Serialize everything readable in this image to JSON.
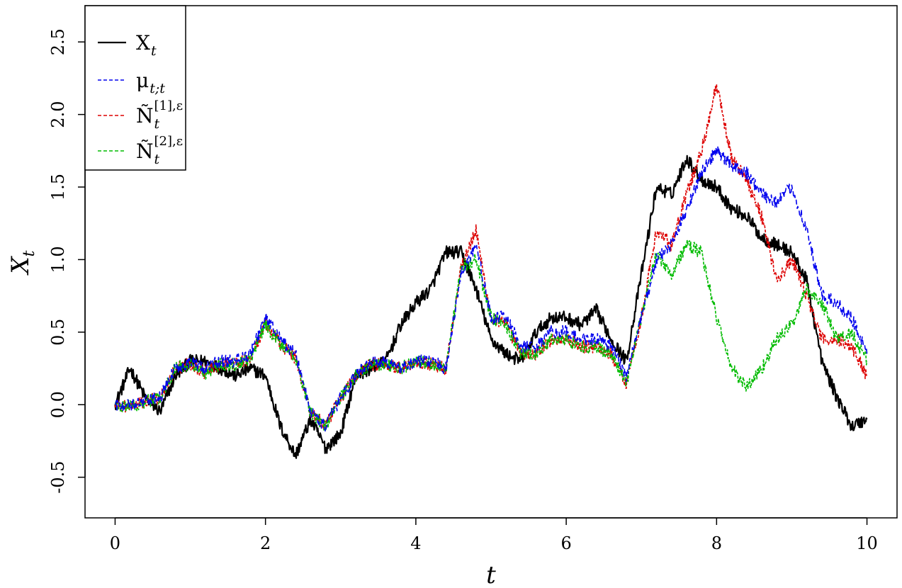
{
  "chart_data": {
    "type": "line",
    "title": "",
    "xlabel": "t",
    "ylabel": "X_t",
    "xlim": [
      -0.4,
      10.4
    ],
    "ylim": [
      -0.78,
      2.75
    ],
    "x_ticks": [
      0,
      2,
      4,
      6,
      8,
      10
    ],
    "x_tick_labels": [
      "0",
      "2",
      "4",
      "6",
      "8",
      "10"
    ],
    "y_ticks": [
      -0.5,
      0.0,
      0.5,
      1.0,
      1.5,
      2.0,
      2.5
    ],
    "y_tick_labels": [
      "-0.5",
      "0.0",
      "0.5",
      "1.0",
      "1.5",
      "2.0",
      "2.5"
    ],
    "grid": false,
    "legend_position": "top-left",
    "series": [
      {
        "name": "X_t",
        "legend": {
          "main": "X",
          "sub": "t",
          "sup": ""
        },
        "color": "#000000",
        "style": "solid",
        "x": [
          0,
          0.2,
          0.4,
          0.6,
          0.8,
          1.0,
          1.2,
          1.4,
          1.6,
          1.8,
          2.0,
          2.2,
          2.4,
          2.6,
          2.8,
          3.0,
          3.2,
          3.4,
          3.6,
          3.8,
          4.0,
          4.2,
          4.4,
          4.6,
          4.8,
          5.0,
          5.2,
          5.4,
          5.6,
          5.8,
          6.0,
          6.2,
          6.4,
          6.6,
          6.8,
          7.0,
          7.2,
          7.4,
          7.6,
          7.8,
          8.0,
          8.2,
          8.4,
          8.6,
          8.8,
          9.0,
          9.2,
          9.4,
          9.6,
          9.8,
          10.0
        ],
        "y": [
          0.0,
          0.25,
          0.05,
          -0.05,
          0.2,
          0.3,
          0.3,
          0.25,
          0.2,
          0.25,
          0.2,
          -0.15,
          -0.35,
          -0.1,
          -0.3,
          -0.2,
          0.2,
          0.25,
          0.3,
          0.55,
          0.7,
          0.8,
          1.05,
          1.05,
          0.8,
          0.45,
          0.35,
          0.3,
          0.5,
          0.6,
          0.6,
          0.55,
          0.65,
          0.45,
          0.3,
          0.9,
          1.5,
          1.45,
          1.7,
          1.55,
          1.5,
          1.35,
          1.3,
          1.15,
          1.1,
          1.05,
          0.85,
          0.3,
          0.05,
          -0.15,
          -0.1
        ]
      },
      {
        "name": "μ_t;t",
        "legend": {
          "main": "μ",
          "sub": "t;t",
          "sup": ""
        },
        "color": "#0000ee",
        "style": "dashed",
        "x": [
          0,
          0.2,
          0.4,
          0.6,
          0.8,
          1.0,
          1.2,
          1.4,
          1.6,
          1.8,
          2.0,
          2.2,
          2.4,
          2.6,
          2.8,
          3.0,
          3.2,
          3.4,
          3.6,
          3.8,
          4.0,
          4.2,
          4.4,
          4.6,
          4.8,
          5.0,
          5.2,
          5.4,
          5.6,
          5.8,
          6.0,
          6.2,
          6.4,
          6.6,
          6.8,
          7.0,
          7.2,
          7.4,
          7.6,
          7.8,
          8.0,
          8.2,
          8.4,
          8.6,
          8.8,
          9.0,
          9.2,
          9.4,
          9.6,
          9.8,
          10.0
        ],
        "y": [
          0.0,
          -0.01,
          0.02,
          0.05,
          0.25,
          0.3,
          0.25,
          0.3,
          0.3,
          0.35,
          0.6,
          0.45,
          0.35,
          -0.05,
          -0.15,
          0.05,
          0.2,
          0.3,
          0.3,
          0.25,
          0.3,
          0.3,
          0.25,
          0.9,
          1.1,
          0.6,
          0.6,
          0.4,
          0.4,
          0.5,
          0.5,
          0.45,
          0.45,
          0.4,
          0.2,
          0.6,
          1.0,
          1.1,
          1.35,
          1.6,
          1.75,
          1.65,
          1.6,
          1.45,
          1.4,
          1.5,
          1.2,
          0.75,
          0.7,
          0.6,
          0.35
        ]
      },
      {
        "name": "Ñ_t^[1],ε",
        "legend": {
          "main": "Ñ",
          "sub": "t",
          "sup": "[1],ε"
        },
        "color": "#dd0000",
        "style": "dashed",
        "x": [
          0,
          0.2,
          0.4,
          0.6,
          0.8,
          1.0,
          1.2,
          1.4,
          1.6,
          1.8,
          2.0,
          2.2,
          2.4,
          2.6,
          2.8,
          3.0,
          3.2,
          3.4,
          3.6,
          3.8,
          4.0,
          4.2,
          4.4,
          4.6,
          4.8,
          5.0,
          5.2,
          5.4,
          5.6,
          5.8,
          6.0,
          6.2,
          6.4,
          6.6,
          6.8,
          7.0,
          7.2,
          7.4,
          7.6,
          7.8,
          8.0,
          8.2,
          8.4,
          8.6,
          8.8,
          9.0,
          9.2,
          9.4,
          9.6,
          9.8,
          10.0
        ],
        "y": [
          0.0,
          -0.01,
          0.02,
          0.05,
          0.25,
          0.28,
          0.22,
          0.28,
          0.28,
          0.32,
          0.55,
          0.42,
          0.32,
          -0.05,
          -0.15,
          0.05,
          0.2,
          0.28,
          0.28,
          0.25,
          0.3,
          0.28,
          0.25,
          0.95,
          1.2,
          0.6,
          0.55,
          0.35,
          0.35,
          0.45,
          0.45,
          0.4,
          0.4,
          0.35,
          0.15,
          0.6,
          1.2,
          1.1,
          1.45,
          1.75,
          2.2,
          1.7,
          1.55,
          1.3,
          0.85,
          1.0,
          0.75,
          0.45,
          0.45,
          0.4,
          0.2
        ]
      },
      {
        "name": "Ñ_t^[2],ε",
        "legend": {
          "main": "Ñ",
          "sub": "t",
          "sup": "[2],ε"
        },
        "color": "#00bb00",
        "style": "dashed",
        "x": [
          0,
          0.2,
          0.4,
          0.6,
          0.8,
          1.0,
          1.2,
          1.4,
          1.6,
          1.8,
          2.0,
          2.2,
          2.4,
          2.6,
          2.8,
          3.0,
          3.2,
          3.4,
          3.6,
          3.8,
          4.0,
          4.2,
          4.4,
          4.6,
          4.8,
          5.0,
          5.2,
          5.4,
          5.6,
          5.8,
          6.0,
          6.2,
          6.4,
          6.6,
          6.8,
          7.0,
          7.2,
          7.4,
          7.6,
          7.8,
          8.0,
          8.2,
          8.4,
          8.6,
          8.8,
          9.0,
          9.2,
          9.4,
          9.6,
          9.8,
          10.0
        ],
        "y": [
          0.0,
          -0.01,
          0.02,
          0.05,
          0.25,
          0.28,
          0.22,
          0.28,
          0.28,
          0.32,
          0.55,
          0.42,
          0.32,
          -0.05,
          -0.15,
          0.05,
          0.2,
          0.28,
          0.28,
          0.25,
          0.3,
          0.28,
          0.25,
          0.95,
          1.0,
          0.6,
          0.55,
          0.35,
          0.35,
          0.45,
          0.45,
          0.4,
          0.4,
          0.35,
          0.15,
          0.6,
          1.05,
          0.9,
          1.1,
          1.05,
          0.6,
          0.25,
          0.12,
          0.25,
          0.45,
          0.55,
          0.8,
          0.7,
          0.45,
          0.5,
          0.3
        ]
      }
    ]
  }
}
